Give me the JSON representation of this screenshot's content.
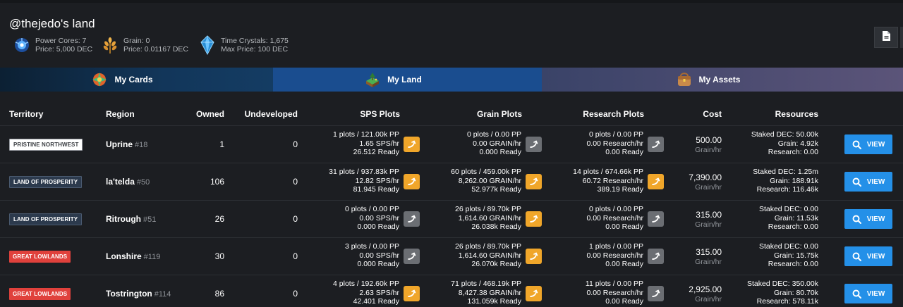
{
  "header": {
    "username": "@thejedo's land",
    "stats": [
      {
        "icon": "power-core-icon",
        "line1": "Power Cores: 7",
        "line2": "Price: 5,000 DEC"
      },
      {
        "icon": "grain-icon",
        "line1": "Grain: 0",
        "line2": "Price: 0.01167 DEC"
      },
      {
        "icon": "time-crystal-icon",
        "line1": "Time Crystals: 1,675",
        "line2": "Max Price: 100 DEC"
      }
    ]
  },
  "tabs": [
    {
      "label": "My Cards",
      "icon": "cards-icon"
    },
    {
      "label": "My Land",
      "icon": "land-icon",
      "active": true
    },
    {
      "label": "My Assets",
      "icon": "assets-icon"
    }
  ],
  "table": {
    "headers": {
      "territory": "Territory",
      "region": "Region",
      "owned": "Owned",
      "undeveloped": "Undeveloped",
      "sps": "SPS Plots",
      "grain": "Grain Plots",
      "research": "Research Plots",
      "cost": "Cost",
      "resources": "Resources"
    },
    "view_label": "VIEW",
    "rows": [
      {
        "territory": "PRISTINE NORTHWEST",
        "territory_style": "white",
        "region": "Uprine",
        "region_num": "#18",
        "owned": "1",
        "undeveloped": "0",
        "sps": [
          "1 plots / 121.00k PP",
          "1.65 SPS/hr",
          "26.512 Ready"
        ],
        "sps_active": true,
        "grain": [
          "0 plots / 0.00 PP",
          "0.00 GRAIN/hr",
          "0.000 Ready"
        ],
        "grain_active": false,
        "research": [
          "0 plots / 0.00 PP",
          "0.00 Research/hr",
          "0.00 Ready"
        ],
        "research_active": false,
        "cost_value": "500.00",
        "cost_unit": "Grain/hr",
        "resources": [
          "Staked DEC: 50.00k",
          "Grain: 4.92k",
          "Research: 0.00"
        ]
      },
      {
        "territory": "LAND OF PROSPERITY",
        "territory_style": "dark",
        "region": "la'telda",
        "region_num": "#50",
        "owned": "106",
        "undeveloped": "0",
        "sps": [
          "31 plots / 937.83k PP",
          "12.82 SPS/hr",
          "81.945 Ready"
        ],
        "sps_active": true,
        "grain": [
          "60 plots / 459.00k PP",
          "8,262.00 GRAIN/hr",
          "52.977k Ready"
        ],
        "grain_active": true,
        "research": [
          "14 plots / 674.66k PP",
          "60.72 Research/hr",
          "389.19 Ready"
        ],
        "research_active": true,
        "cost_value": "7,390.00",
        "cost_unit": "Grain/hr",
        "resources": [
          "Staked DEC: 1.25m",
          "Grain: 188.91k",
          "Research: 116.46k"
        ]
      },
      {
        "territory": "LAND OF PROSPERITY",
        "territory_style": "dark",
        "region": "Ritrough",
        "region_num": "#51",
        "owned": "26",
        "undeveloped": "0",
        "sps": [
          "0 plots / 0.00 PP",
          "0.00 SPS/hr",
          "0.000 Ready"
        ],
        "sps_active": false,
        "grain": [
          "26 plots / 89.70k PP",
          "1,614.60 GRAIN/hr",
          "26.038k Ready"
        ],
        "grain_active": true,
        "research": [
          "0 plots / 0.00 PP",
          "0.00 Research/hr",
          "0.00 Ready"
        ],
        "research_active": false,
        "cost_value": "315.00",
        "cost_unit": "Grain/hr",
        "resources": [
          "Staked DEC: 0.00",
          "Grain: 11.53k",
          "Research: 0.00"
        ]
      },
      {
        "territory": "GREAT LOWLANDS",
        "territory_style": "red",
        "region": "Lonshire",
        "region_num": "#119",
        "owned": "30",
        "undeveloped": "0",
        "sps": [
          "3 plots / 0.00 PP",
          "0.00 SPS/hr",
          "0.000 Ready"
        ],
        "sps_active": false,
        "grain": [
          "26 plots / 89.70k PP",
          "1,614.60 GRAIN/hr",
          "26.070k Ready"
        ],
        "grain_active": true,
        "research": [
          "1 plots / 0.00 PP",
          "0.00 Research/hr",
          "0.00 Ready"
        ],
        "research_active": false,
        "cost_value": "315.00",
        "cost_unit": "Grain/hr",
        "resources": [
          "Staked DEC: 0.00",
          "Grain: 15.75k",
          "Research: 0.00"
        ]
      },
      {
        "territory": "GREAT LOWLANDS",
        "territory_style": "red",
        "region": "Tostrington",
        "region_num": "#114",
        "owned": "86",
        "undeveloped": "0",
        "sps": [
          "4 plots / 192.60k PP",
          "2.63 SPS/hr",
          "42.401 Ready"
        ],
        "sps_active": true,
        "grain": [
          "71 plots / 468.19k PP",
          "8,427.38 GRAIN/hr",
          "131.059k Ready"
        ],
        "grain_active": true,
        "research": [
          "11 plots / 0.00 PP",
          "0.00 Research/hr",
          "0.00 Ready"
        ],
        "research_active": false,
        "cost_value": "2,925.00",
        "cost_unit": "Grain/hr",
        "resources": [
          "Staked DEC: 350.00k",
          "Grain: 80.70k",
          "Research: 578.11k"
        ]
      }
    ]
  },
  "colors": {
    "accent_blue": "#2490e8",
    "claim_active": "#f0a62a",
    "claim_inactive": "#6b6e73",
    "badge_red": "#e0413c"
  }
}
